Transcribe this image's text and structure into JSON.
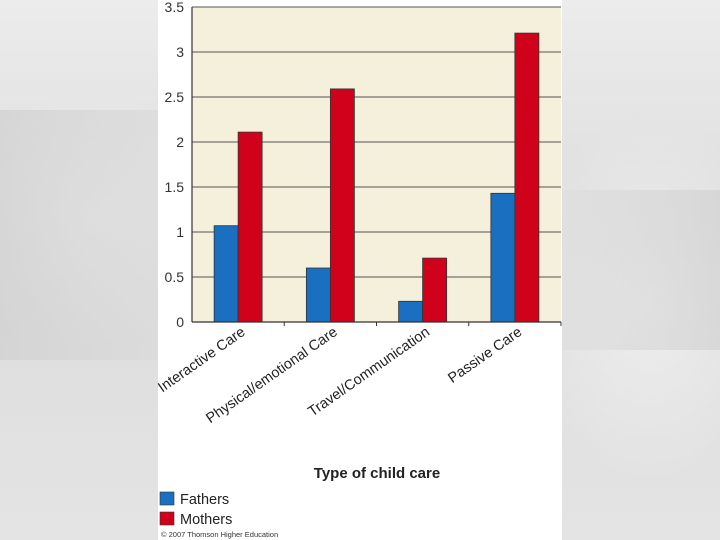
{
  "chart_data": {
    "type": "bar",
    "categories": [
      "Interactive Care",
      "Physical/emotional Care",
      "Travel/Communication",
      "Passive Care"
    ],
    "series": [
      {
        "name": "Fathers",
        "values": [
          1.07,
          0.6,
          0.23,
          1.43
        ],
        "color": "#1a6fc0"
      },
      {
        "name": "Mothers",
        "values": [
          2.11,
          2.59,
          0.71,
          3.21
        ],
        "color": "#d0021b"
      }
    ],
    "yticks": [
      "0",
      "0.5",
      "1",
      "1.5",
      "2",
      "2.5",
      "3",
      "3.5"
    ],
    "ylim": [
      0,
      3.5
    ],
    "xlabel": "Type of child care",
    "ylabel": "",
    "title": "",
    "grid": true,
    "legend_position": "bottom-left",
    "plot_background": "#f4f0dc",
    "copyright": "© 2007 Thomson Higher Education"
  }
}
